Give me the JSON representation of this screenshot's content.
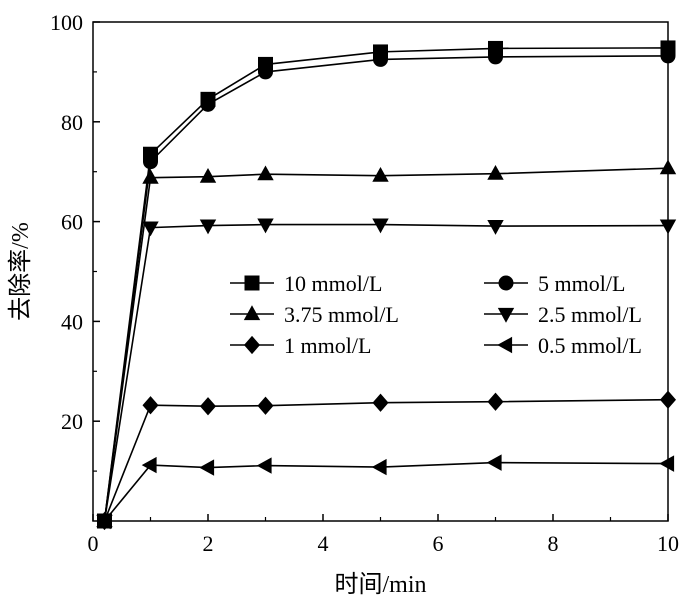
{
  "chart_data": {
    "type": "line",
    "xlabel": "时间/min",
    "ylabel": "去除率/%",
    "xlim": [
      0,
      10
    ],
    "ylim": [
      0,
      100
    ],
    "x_ticks": [
      "0",
      "2",
      "4",
      "6",
      "8",
      "10"
    ],
    "y_ticks": [
      "20",
      "40",
      "60",
      "80",
      "100"
    ],
    "grid": false,
    "legend_position": "center",
    "series": [
      {
        "name": "10 mmol/L",
        "marker": "square",
        "points": [
          [
            0.2,
            0
          ],
          [
            1,
            73.5
          ],
          [
            2,
            84.5
          ],
          [
            3,
            91.5
          ],
          [
            5,
            94
          ],
          [
            7,
            94.7
          ],
          [
            10,
            94.8
          ]
        ]
      },
      {
        "name": "5 mmol/L",
        "marker": "circle",
        "points": [
          [
            0.2,
            0
          ],
          [
            1,
            72
          ],
          [
            2,
            83.5
          ],
          [
            3,
            90
          ],
          [
            5,
            92.5
          ],
          [
            7,
            93
          ],
          [
            10,
            93.2
          ]
        ]
      },
      {
        "name": "3.75 mmol/L",
        "marker": "triangle-up",
        "points": [
          [
            0.2,
            0
          ],
          [
            1,
            68.8
          ],
          [
            2,
            69
          ],
          [
            3,
            69.5
          ],
          [
            5,
            69.2
          ],
          [
            7,
            69.6
          ],
          [
            10,
            70.7
          ]
        ]
      },
      {
        "name": "2.5 mmol/L",
        "marker": "triangle-down",
        "points": [
          [
            0.2,
            0
          ],
          [
            1,
            58.8
          ],
          [
            2,
            59.2
          ],
          [
            3,
            59.4
          ],
          [
            5,
            59.4
          ],
          [
            7,
            59.1
          ],
          [
            10,
            59.2
          ]
        ]
      },
      {
        "name": "1 mmol/L",
        "marker": "diamond",
        "points": [
          [
            0.2,
            0
          ],
          [
            1,
            23.2
          ],
          [
            2,
            23
          ],
          [
            3,
            23.1
          ],
          [
            5,
            23.7
          ],
          [
            7,
            23.9
          ],
          [
            10,
            24.3
          ]
        ]
      },
      {
        "name": "0.5 mmol/L",
        "marker": "triangle-left",
        "points": [
          [
            0.2,
            0
          ],
          [
            1,
            11.2
          ],
          [
            2,
            10.7
          ],
          [
            3,
            11.1
          ],
          [
            5,
            10.8
          ],
          [
            7,
            11.7
          ],
          [
            10,
            11.5
          ]
        ]
      }
    ]
  }
}
